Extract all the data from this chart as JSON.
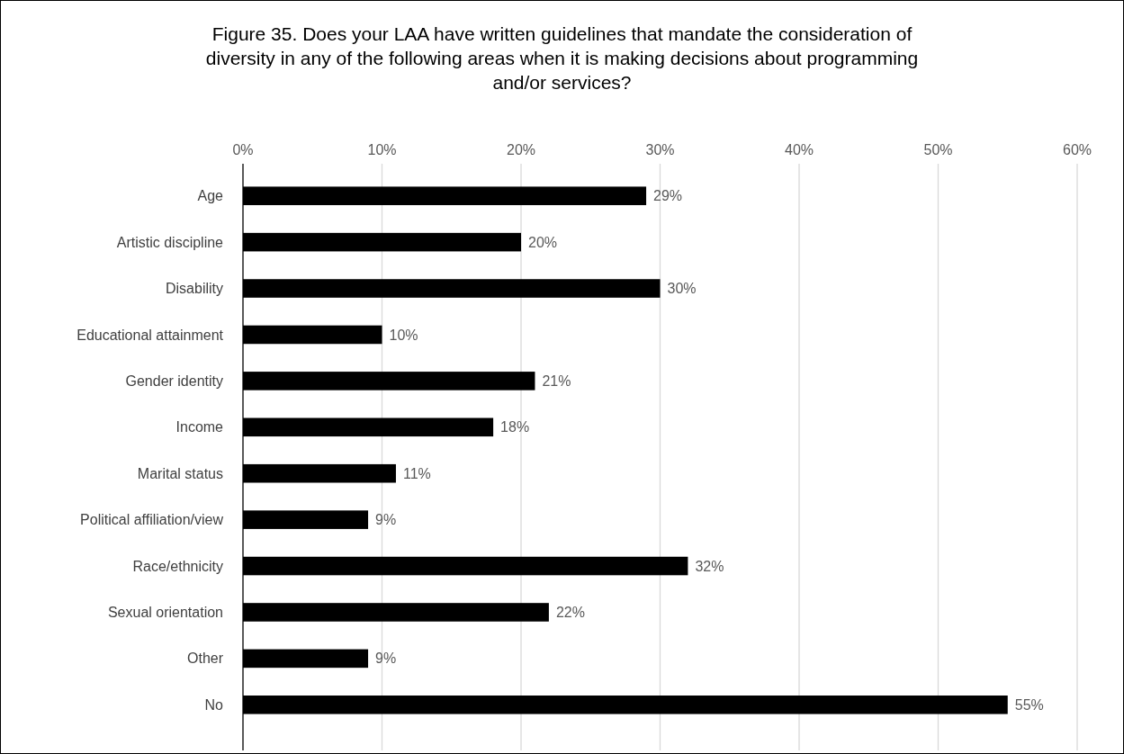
{
  "chart_data": {
    "type": "bar",
    "orientation": "horizontal",
    "title": "Figure 35. Does your LAA have written guidelines that mandate the consideration of diversity in any of the following areas when it is making decisions about programming and/or services?",
    "categories": [
      "Age",
      "Artistic discipline",
      "Disability",
      "Educational attainment",
      "Gender identity",
      "Income",
      "Marital status",
      "Political affiliation/view",
      "Race/ethnicity",
      "Sexual orientation",
      "Other",
      "No"
    ],
    "values": [
      29,
      20,
      30,
      10,
      21,
      18,
      11,
      9,
      32,
      22,
      9,
      55
    ],
    "value_labels": [
      "29%",
      "20%",
      "30%",
      "10%",
      "21%",
      "18%",
      "11%",
      "9%",
      "32%",
      "22%",
      "9%",
      "55%"
    ],
    "color": "#000000",
    "xlim": [
      0,
      60
    ],
    "xticks": [
      {
        "value": 0,
        "label": "0%"
      },
      {
        "value": 10,
        "label": "10%"
      },
      {
        "value": 20,
        "label": "20%"
      },
      {
        "value": 30,
        "label": "30%"
      },
      {
        "value": 40,
        "label": "40%"
      },
      {
        "value": 50,
        "label": "50%"
      },
      {
        "value": 60,
        "label": "60%"
      }
    ],
    "grid": "x"
  }
}
